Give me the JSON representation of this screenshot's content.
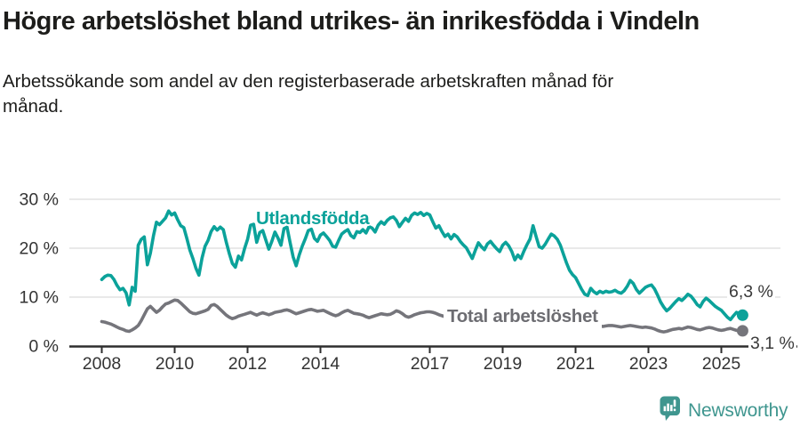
{
  "title": "Högre arbetslöshet bland utrikes- än inrikesfödda i Vindeln",
  "subtitle": "Arbetssökande som andel av den registerbaserade arbetskraften månad för månad.",
  "footer": {
    "brand": "Newsworthy",
    "logo_icon": "newsworthy-speech-bubble-bar-chart-icon"
  },
  "colors": {
    "accent_teal": "#0ba29a",
    "series_gray": "#75757b",
    "grid": "#dcdcdc",
    "axis": "#2e2e2e",
    "tick_text": "#333333",
    "heading_text": "#1d1d1b",
    "logo_teal": "#3f968f"
  },
  "chart_data": {
    "type": "line",
    "title": "Högre arbetslöshet bland utrikes- än inrikesfödda i Vindeln",
    "xlabel": "",
    "ylabel": "",
    "x_unit": "månad",
    "x_start": "2008-01",
    "x_end": "2025-08",
    "x_tick_years": [
      2008,
      2010,
      2012,
      2014,
      2017,
      2019,
      2021,
      2023,
      2025
    ],
    "y_ticks": [
      {
        "value": 0,
        "label": "0 %"
      },
      {
        "value": 10,
        "label": "10 %"
      },
      {
        "value": 20,
        "label": "20 %"
      },
      {
        "value": 30,
        "label": "30 %"
      }
    ],
    "ylim": [
      0,
      31
    ],
    "grid": "horizontal",
    "legend": "inline-labels",
    "series": [
      {
        "name": "Utlandsfödda",
        "color": "#0ba29a",
        "end_label": "6,3 %",
        "end_value": 6.3,
        "values": [
          13.6,
          14.2,
          14.5,
          14.4,
          13.6,
          12.4,
          11.5,
          11.8,
          10.9,
          8.4,
          12.0,
          11.2,
          20.6,
          21.8,
          22.3,
          16.6,
          19.0,
          22.5,
          25.3,
          24.8,
          25.5,
          26.2,
          27.6,
          26.8,
          27.2,
          25.8,
          24.6,
          24.2,
          22.0,
          19.6,
          17.9,
          15.9,
          14.5,
          18.0,
          20.4,
          21.6,
          23.4,
          24.4,
          23.7,
          24.3,
          23.8,
          21.2,
          18.9,
          16.9,
          16.1,
          18.4,
          17.6,
          19.9,
          21.8,
          24.7,
          24.9,
          21.2,
          23.2,
          23.6,
          21.7,
          19.8,
          21.4,
          23.3,
          22.1,
          20.6,
          24.0,
          24.3,
          21.2,
          18.2,
          16.4,
          18.6,
          20.4,
          21.9,
          23.6,
          23.9,
          22.0,
          21.4,
          22.7,
          23.1,
          22.4,
          21.6,
          20.4,
          20.2,
          21.6,
          22.9,
          23.4,
          23.8,
          22.6,
          22.1,
          23.4,
          23.2,
          23.8,
          23.1,
          24.4,
          24.1,
          23.3,
          24.7,
          25.4,
          24.9,
          25.7,
          26.2,
          26.4,
          25.7,
          24.4,
          25.3,
          26.1,
          25.5,
          26.7,
          27.2,
          26.9,
          27.3,
          26.7,
          27.1,
          26.8,
          25.4,
          24.1,
          24.6,
          23.4,
          22.4,
          22.9,
          21.9,
          22.8,
          22.3,
          21.4,
          20.7,
          20.1,
          19.0,
          17.9,
          19.6,
          21.1,
          20.3,
          19.7,
          20.9,
          21.4,
          20.6,
          19.9,
          19.3,
          20.6,
          21.2,
          20.5,
          19.3,
          17.6,
          18.6,
          17.9,
          19.4,
          20.7,
          21.9,
          24.6,
          22.4,
          20.3,
          20.0,
          20.8,
          21.9,
          22.9,
          22.5,
          21.8,
          20.6,
          18.8,
          17.0,
          15.5,
          14.6,
          14.0,
          12.8,
          11.6,
          10.6,
          10.3,
          11.8,
          11.1,
          10.7,
          11.2,
          10.9,
          11.2,
          11.0,
          11.1,
          11.4,
          11.0,
          10.8,
          11.3,
          12.2,
          13.4,
          12.8,
          11.6,
          10.8,
          11.4,
          12.0,
          12.3,
          12.5,
          11.7,
          10.4,
          9.0,
          8.0,
          7.2,
          7.7,
          8.4,
          9.1,
          9.7,
          9.3,
          9.9,
          10.6,
          10.2,
          9.4,
          8.5,
          8.0,
          9.1,
          9.8,
          9.3,
          8.7,
          8.1,
          7.7,
          7.3,
          6.6,
          5.9,
          5.4,
          6.2,
          6.9,
          6.6,
          6.3
        ]
      },
      {
        "name": "Total arbetslöshet",
        "color": "#75757b",
        "end_label": "3,1 %",
        "end_value": 3.1,
        "values": [
          5.0,
          4.9,
          4.7,
          4.5,
          4.2,
          3.9,
          3.6,
          3.4,
          3.1,
          3.0,
          3.3,
          3.7,
          4.2,
          5.2,
          6.4,
          7.6,
          8.1,
          7.5,
          6.9,
          7.3,
          8.0,
          8.6,
          8.8,
          9.1,
          9.4,
          9.3,
          8.8,
          8.2,
          7.6,
          7.0,
          6.7,
          6.6,
          6.8,
          7.0,
          7.2,
          7.5,
          8.3,
          8.5,
          8.1,
          7.5,
          6.9,
          6.3,
          5.9,
          5.6,
          5.8,
          6.1,
          6.3,
          6.5,
          6.7,
          6.9,
          6.6,
          6.3,
          6.6,
          6.8,
          6.6,
          6.4,
          6.6,
          6.9,
          7.0,
          7.1,
          7.3,
          7.4,
          7.2,
          6.9,
          6.6,
          6.8,
          7.0,
          7.2,
          7.4,
          7.5,
          7.3,
          7.1,
          7.2,
          7.3,
          7.0,
          6.7,
          6.4,
          6.2,
          6.4,
          6.8,
          7.1,
          7.3,
          7.0,
          6.7,
          6.6,
          6.5,
          6.3,
          6.0,
          5.8,
          6.0,
          6.2,
          6.4,
          6.6,
          6.5,
          6.4,
          6.5,
          6.8,
          7.2,
          7.0,
          6.6,
          6.1,
          5.9,
          6.1,
          6.4,
          6.6,
          6.8,
          6.9,
          7.0,
          7.0,
          6.9,
          6.7,
          6.4,
          6.2,
          6.0,
          5.9,
          5.8,
          5.9,
          6.0,
          5.9,
          5.8,
          5.7,
          5.6,
          5.4,
          5.3,
          5.2,
          5.1,
          5.0,
          5.0,
          5.1,
          5.2,
          5.1,
          5.0,
          5.0,
          5.1,
          5.0,
          4.9,
          4.8,
          4.7,
          4.7,
          4.8,
          4.9,
          5.0,
          5.2,
          5.1,
          5.2,
          5.4,
          5.6,
          5.9,
          6.0,
          5.9,
          5.7,
          5.5,
          5.3,
          5.1,
          5.0,
          4.9,
          4.8,
          4.7,
          4.6,
          4.5,
          4.4,
          4.3,
          4.2,
          4.1,
          4.1,
          4.0,
          4.1,
          4.2,
          4.2,
          4.1,
          4.0,
          3.9,
          4.0,
          4.1,
          4.2,
          4.1,
          4.0,
          3.9,
          3.8,
          3.9,
          3.8,
          3.7,
          3.5,
          3.2,
          3.0,
          2.9,
          3.0,
          3.2,
          3.4,
          3.5,
          3.6,
          3.5,
          3.7,
          3.9,
          3.8,
          3.6,
          3.4,
          3.3,
          3.5,
          3.7,
          3.8,
          3.7,
          3.5,
          3.3,
          3.2,
          3.3,
          3.5,
          3.6,
          3.4,
          3.2,
          3.1,
          3.1
        ]
      }
    ]
  }
}
